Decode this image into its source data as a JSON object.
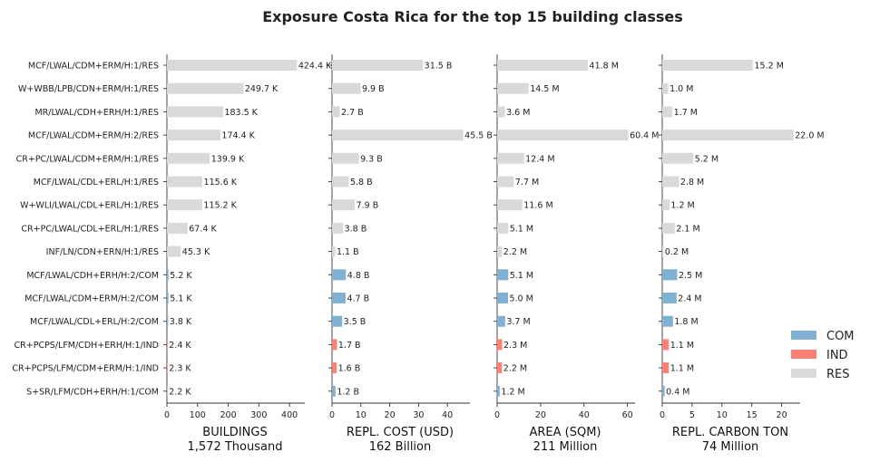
{
  "chart_data": {
    "type": "bar",
    "title": "Exposure Costa Rica for the top 15 building classes",
    "categories": [
      "MCF/LWAL/CDM+ERM/H:1/RES",
      "W+WBB/LPB/CDN+ERM/H:1/RES",
      "MR/LWAL/CDH+ERH/H:1/RES",
      "MCF/LWAL/CDM+ERM/H:2/RES",
      "CR+PC/LWAL/CDM+ERM/H:1/RES",
      "MCF/LWAL/CDL+ERL/H:1/RES",
      "W+WLI/LWAL/CDL+ERL/H:1/RES",
      "CR+PC/LWAL/CDL+ERL/H:1/RES",
      "INF/LN/CDN+ERN/H:1/RES",
      "MCF/LWAL/CDH+ERH/H:2/COM",
      "MCF/LWAL/CDM+ERM/H:2/COM",
      "MCF/LWAL/CDL+ERL/H:2/COM",
      "CR+PCPS/LFM/CDH+ERH/H:1/IND",
      "CR+PCPS/LFM/CDM+ERM/H:1/IND",
      "S+SR/LFM/CDH+ERH/H:1/COM"
    ],
    "occupancy": [
      "RES",
      "RES",
      "RES",
      "RES",
      "RES",
      "RES",
      "RES",
      "RES",
      "RES",
      "COM",
      "COM",
      "COM",
      "IND",
      "IND",
      "COM"
    ],
    "legend": {
      "position": "right",
      "items": [
        {
          "name": "COM",
          "color": "#81b1d2"
        },
        {
          "name": "IND",
          "color": "#fa8174"
        },
        {
          "name": "RES",
          "color": "#d9d9d9"
        }
      ]
    },
    "panels": [
      {
        "xlabel": "BUILDINGS",
        "subtitle": "1,572 Thousand",
        "xlim": [
          0,
          450
        ],
        "ticks": [
          0,
          100,
          200,
          300,
          400
        ],
        "values": [
          424.4,
          249.7,
          183.5,
          174.4,
          139.9,
          115.6,
          115.2,
          67.4,
          45.3,
          5.2,
          5.1,
          3.8,
          2.4,
          2.3,
          2.2
        ],
        "labels": [
          "424.4 K",
          "249.7 K",
          "183.5 K",
          "174.4 K",
          "139.9 K",
          "115.6 K",
          "115.2 K",
          "67.4 K",
          "45.3 K",
          "5.2 K",
          "5.1 K",
          "3.8 K",
          "2.4 K",
          "2.3 K",
          "2.2 K"
        ]
      },
      {
        "xlabel": "REPL. COST (USD)",
        "subtitle": "162 Billion",
        "xlim": [
          0,
          47.8
        ],
        "ticks": [
          0,
          10,
          20,
          30,
          40
        ],
        "values": [
          31.5,
          9.9,
          2.7,
          45.5,
          9.3,
          5.8,
          7.9,
          3.8,
          1.1,
          4.8,
          4.7,
          3.5,
          1.7,
          1.6,
          1.2
        ],
        "labels": [
          "31.5 B",
          "9.9 B",
          "2.7 B",
          "45.5 B",
          "9.3 B",
          "5.8 B",
          "7.9 B",
          "3.8 B",
          "1.1 B",
          "4.8 B",
          "4.7 B",
          "3.5 B",
          "1.7 B",
          "1.6 B",
          "1.2 B"
        ]
      },
      {
        "xlabel": "AREA (SQM)",
        "subtitle": "211 Million",
        "xlim": [
          0,
          63.5
        ],
        "ticks": [
          0,
          20,
          40,
          60
        ],
        "values": [
          41.8,
          14.5,
          3.6,
          60.4,
          12.4,
          7.7,
          11.6,
          5.1,
          2.2,
          5.1,
          5.0,
          3.7,
          2.3,
          2.2,
          1.2
        ],
        "labels": [
          "41.8 M",
          "14.5 M",
          "3.6 M",
          "60.4 M",
          "12.4 M",
          "7.7 M",
          "11.6 M",
          "5.1 M",
          "2.2 M",
          "5.1 M",
          "5.0 M",
          "3.7 M",
          "2.3 M",
          "2.2 M",
          "1.2 M"
        ]
      },
      {
        "xlabel": "REPL. CARBON TON",
        "subtitle": "74 Million",
        "xlim": [
          0,
          23.1
        ],
        "ticks": [
          0,
          5,
          10,
          15,
          20
        ],
        "values": [
          15.2,
          1.0,
          1.7,
          22.0,
          5.2,
          2.8,
          1.2,
          2.1,
          0.2,
          2.5,
          2.4,
          1.8,
          1.1,
          1.1,
          0.4
        ],
        "labels": [
          "15.2 M",
          "1.0 M",
          "1.7 M",
          "22.0 M",
          "5.2 M",
          "2.8 M",
          "1.2 M",
          "2.1 M",
          "0.2 M",
          "2.5 M",
          "2.4 M",
          "1.8 M",
          "1.1 M",
          "1.1 M",
          "0.4 M"
        ]
      }
    ]
  }
}
